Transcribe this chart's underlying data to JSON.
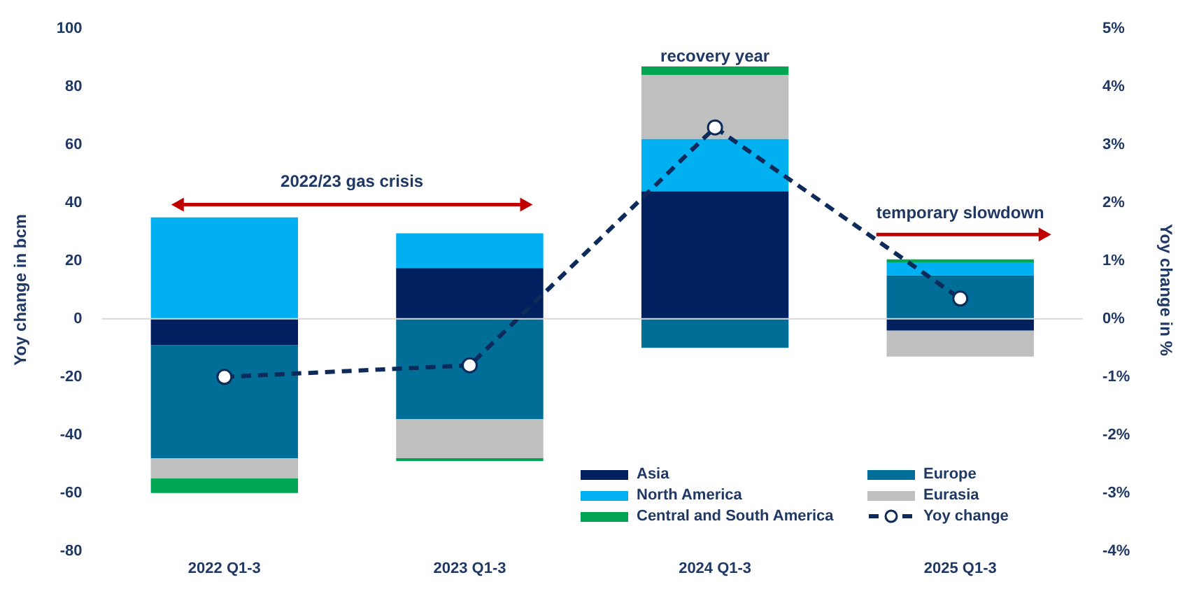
{
  "chart_data": {
    "type": "bar",
    "stacked": true,
    "categories": [
      "2022 Q1-3",
      "2023 Q1-3",
      "2024 Q1-3",
      "2025 Q1-3"
    ],
    "ylabel": "Yoy change in bcm",
    "y2label": "Yoy change in %",
    "ylim": [
      -80,
      100
    ],
    "yticks": [
      -80,
      -60,
      -40,
      -20,
      0,
      20,
      40,
      60,
      80,
      100
    ],
    "y2lim": [
      -4,
      5
    ],
    "y2ticks": [
      {
        "value": -4,
        "label": "-4%"
      },
      {
        "value": -3,
        "label": "-3%"
      },
      {
        "value": -2,
        "label": "-2%"
      },
      {
        "value": -1,
        "label": "-1%"
      },
      {
        "value": 0,
        "label": "0%"
      },
      {
        "value": 1,
        "label": "1%"
      },
      {
        "value": 2,
        "label": "2%"
      },
      {
        "value": 3,
        "label": "3%"
      },
      {
        "value": 4,
        "label": "4%"
      },
      {
        "value": 5,
        "label": "5%"
      }
    ],
    "grid": false,
    "legend": "bottom right",
    "ref_lines": [
      {
        "axis": "y",
        "value": 0,
        "color": "#d9d9d9"
      }
    ],
    "series": [
      {
        "name": "Asia",
        "color": "#002060",
        "values": [
          -9,
          17.5,
          44,
          -4
        ]
      },
      {
        "name": "Europe",
        "color": "#006e96",
        "values": [
          -39,
          -34.5,
          -10,
          15
        ]
      },
      {
        "name": "North America",
        "color": "#00b0f0",
        "values": [
          35,
          12,
          18,
          4.5
        ]
      },
      {
        "name": "Eurasia",
        "color": "#bfbfbf",
        "values": [
          -7,
          -13.5,
          22,
          -9
        ]
      },
      {
        "name": "Central and South America",
        "color": "#00a651",
        "values": [
          -5,
          -1,
          3,
          1
        ]
      },
      {
        "name": "Yoy change",
        "type": "line",
        "axis": "y2",
        "color": "#0c2a5a",
        "line_style": "dashed",
        "marker": "circle",
        "values": [
          -1.0,
          -0.8,
          3.3,
          0.35
        ]
      }
    ],
    "annotations": [
      "2022/23 gas crisis",
      "recovery year",
      "temporary slowdown"
    ]
  }
}
